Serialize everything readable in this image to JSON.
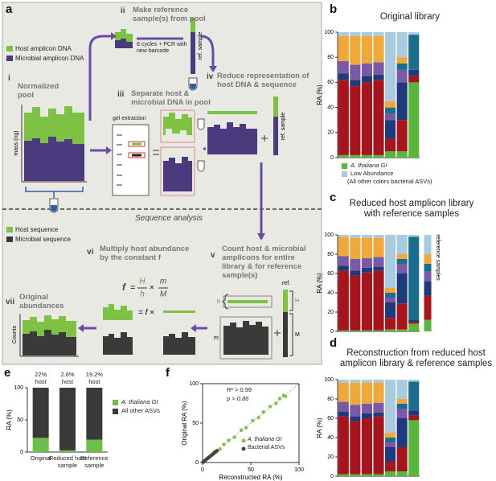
{
  "panel_labels": [
    "a",
    "b",
    "c",
    "d",
    "e",
    "f"
  ],
  "panel_a": {
    "legend_top": [
      "Host amplicon DNA",
      "Microbial amplicon DNA"
    ],
    "steps": [
      {
        "num": "i",
        "title": "Normalized pool"
      },
      {
        "num": "ii",
        "title": "Make reference sample(s) from pool"
      },
      {
        "num": "iii",
        "title": "Separate host & microbial DNA in pool"
      },
      {
        "num": "iv",
        "title": "Reduce representation of host DNA & sequence"
      },
      {
        "num": "v",
        "title": "Count host & microbial amplicons for entire library & for reference sample(s)"
      },
      {
        "num": "vi",
        "title": "Multiply host abundance by the constant f"
      },
      {
        "num": "vii",
        "title": "Original abundances"
      }
    ],
    "pcr_note": "8 cycles + PCR with new barcode",
    "ref_sample": "ref. sample",
    "mass_label": "mass (ng)",
    "gel_extraction": "gel extraction",
    "section_title": "Sequence analysis",
    "legend_bottom": [
      "Host sequence",
      "Microbial sequence"
    ],
    "counts_label": "Counts",
    "formula": {
      "f": "f",
      "eq": "=",
      "H": "H",
      "h": "h",
      "times": "×",
      "m": "m",
      "M": "M"
    },
    "multiply": "= f ×",
    "count_labels": {
      "h": "h",
      "m": "m",
      "H": "H",
      "M": "M",
      "ref": "ref."
    }
  },
  "chart_data": [
    {
      "type": "stacked_bar",
      "title": "Original library",
      "ylabel": "RA (%)",
      "ylim": [
        0,
        100
      ],
      "yticks": [
        0,
        20,
        40,
        60,
        80,
        100
      ],
      "categories": [
        null,
        null,
        null,
        null,
        null,
        null,
        null
      ],
      "series": [
        {
          "name": "A. thaliana GI",
          "color": "#5ab53c",
          "values": [
            2,
            2,
            2,
            2,
            5,
            5,
            60
          ]
        },
        {
          "color": "#a8141c",
          "values": [
            60,
            55,
            58,
            60,
            10,
            25,
            5
          ]
        },
        {
          "color": "#1e3a7a",
          "values": [
            5,
            5,
            5,
            4,
            15,
            30,
            5
          ]
        },
        {
          "color": "#7a5aa8",
          "values": [
            10,
            12,
            10,
            10,
            5,
            10,
            0
          ]
        },
        {
          "color": "#1a6e8c",
          "values": [
            0,
            0,
            0,
            0,
            5,
            5,
            28
          ]
        },
        {
          "color": "#f0a838",
          "values": [
            20,
            23,
            22,
            21,
            5,
            5,
            0
          ]
        },
        {
          "name": "Low Abundance",
          "color": "#a8cbe0",
          "values": [
            3,
            3,
            3,
            3,
            55,
            20,
            2
          ]
        }
      ],
      "note": "(All other colors bacterial ASVs)"
    },
    {
      "type": "stacked_bar",
      "title": "Reduced host amplicon library with reference samples",
      "ylabel": "RA (%)",
      "ylim": [
        0,
        100
      ],
      "yticks": [
        0,
        20,
        40,
        60,
        80,
        100
      ],
      "categories": [
        null,
        null,
        null,
        null,
        null,
        null,
        null,
        null
      ],
      "side_label": "reference samples",
      "series": [
        {
          "color": "#5ab53c",
          "values": [
            1,
            1,
            1,
            1,
            2,
            2,
            8,
            12
          ]
        },
        {
          "color": "#a8141c",
          "values": [
            62,
            57,
            60,
            62,
            12,
            27,
            2,
            25
          ]
        },
        {
          "color": "#1e3a7a",
          "values": [
            5,
            5,
            5,
            4,
            16,
            31,
            2,
            15
          ]
        },
        {
          "color": "#7a5aa8",
          "values": [
            10,
            12,
            10,
            10,
            5,
            10,
            0,
            10
          ]
        },
        {
          "color": "#1a6e8c",
          "values": [
            0,
            0,
            0,
            0,
            5,
            5,
            86,
            8
          ]
        },
        {
          "color": "#f0a838",
          "values": [
            20,
            22,
            21,
            20,
            5,
            5,
            0,
            10
          ]
        },
        {
          "color": "#a8cbe0",
          "values": [
            2,
            3,
            3,
            3,
            55,
            20,
            2,
            20
          ]
        }
      ]
    },
    {
      "type": "stacked_bar",
      "title": "Reconstruction from reduced host amplicon library & reference samples",
      "ylabel": "RA (%)",
      "ylim": [
        0,
        100
      ],
      "yticks": [
        0,
        20,
        40,
        60,
        80,
        100
      ],
      "categories": [
        null,
        null,
        null,
        null,
        null,
        null,
        null
      ],
      "series": [
        {
          "color": "#5ab53c",
          "values": [
            2,
            2,
            2,
            2,
            5,
            5,
            58
          ]
        },
        {
          "color": "#a8141c",
          "values": [
            60,
            55,
            58,
            60,
            10,
            25,
            5
          ]
        },
        {
          "color": "#1e3a7a",
          "values": [
            5,
            5,
            5,
            4,
            15,
            30,
            5
          ]
        },
        {
          "color": "#7a5aa8",
          "values": [
            10,
            12,
            10,
            10,
            5,
            10,
            0
          ]
        },
        {
          "color": "#1a6e8c",
          "values": [
            0,
            0,
            0,
            0,
            5,
            5,
            30
          ]
        },
        {
          "color": "#f0a838",
          "values": [
            20,
            23,
            22,
            21,
            5,
            5,
            0
          ]
        },
        {
          "color": "#a8cbe0",
          "values": [
            3,
            3,
            3,
            3,
            55,
            20,
            2
          ]
        }
      ]
    },
    {
      "type": "stacked_bar",
      "ylabel": "RA (%)",
      "ylim": [
        0,
        100
      ],
      "yticks": [
        0,
        50,
        100
      ],
      "categories": [
        "Original",
        "Reduced host sample",
        "Reference sample"
      ],
      "annotation": "host",
      "series": [
        {
          "name": "A. thaliana GI",
          "color": "#6cc04a",
          "values": [
            22,
            2.6,
            19.2
          ],
          "value_labels": [
            "22%",
            "2.6%",
            "19.2%"
          ]
        },
        {
          "name": "All other ASVs",
          "color": "#3a3a3a",
          "values": [
            78,
            97.4,
            80.8
          ]
        }
      ]
    },
    {
      "type": "scatter",
      "xlabel": "Reconstructed RA (%)",
      "ylabel": "Original RA (%)",
      "xlim": [
        0,
        100
      ],
      "ylim": [
        0,
        100
      ],
      "xticks": [
        0,
        50,
        100
      ],
      "yticks": [
        0,
        50,
        100
      ],
      "annotations": [
        "R² > 0.99",
        "p > 0.86"
      ],
      "series": [
        {
          "name": "A. thaliana GI",
          "color": "#7cc05a",
          "x": [
            12,
            18,
            22,
            27,
            33,
            40,
            45,
            52,
            58,
            63,
            70,
            76,
            80,
            84,
            86
          ],
          "values": [
            13,
            17,
            23,
            28,
            32,
            41,
            44,
            53,
            57,
            64,
            71,
            75,
            81,
            85,
            84
          ]
        },
        {
          "name": "Bacterial ASVs",
          "color": "#444444",
          "x": [
            0.5,
            1,
            1.5,
            2,
            3,
            4,
            5,
            6,
            7,
            8,
            9,
            10,
            11,
            12,
            13,
            14,
            15
          ],
          "values": [
            0.5,
            1,
            1.6,
            2,
            3,
            4.1,
            5,
            6,
            7,
            8,
            9,
            10,
            11,
            12,
            13,
            14,
            15
          ]
        }
      ]
    }
  ]
}
